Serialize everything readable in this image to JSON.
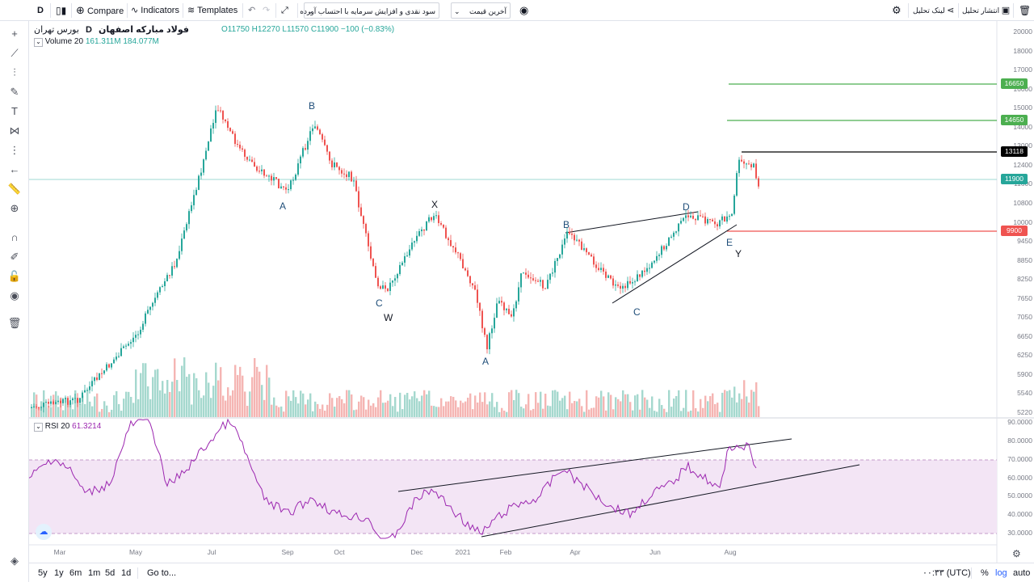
{
  "toolbar": {
    "interval": "D",
    "compare": "Compare",
    "indicators": "Indicators",
    "templates": "Templates",
    "dropdown_1": "سود نقدی و افزایش سرمایه با احتساب آورده",
    "dropdown_2": "آخرین قیمت",
    "link_analysis": "لینک تحلیل",
    "publish_analysis": "انتشار تحلیل"
  },
  "legend": {
    "symbol": "فولاد مبارکه اصفهان",
    "interval": "D",
    "exchange": "بورس تهران",
    "ohlc": "O11750 H12270 L11570 C11900 −100 (−0.83%)",
    "volume_label": "Volume 20",
    "volume_v1": "161.311M",
    "volume_v2": "184.077M",
    "rsi_label": "RSI 20",
    "rsi_value": "61.3214"
  },
  "price_axis": {
    "ticks": [
      "20000",
      "18000",
      "17000",
      "16000",
      "15000",
      "14000",
      "13000",
      "12400",
      "11600",
      "10800",
      "10000",
      "9450",
      "8850",
      "8250",
      "7650",
      "7050",
      "6650",
      "6250",
      "5900",
      "5540",
      "5220"
    ],
    "labels": [
      {
        "value": "16650",
        "color": "#4caf50"
      },
      {
        "value": "14650",
        "color": "#4caf50"
      },
      {
        "value": "13118",
        "color": "#000000"
      },
      {
        "value": "11900",
        "color": "#26a69a"
      },
      {
        "value": "9900",
        "color": "#ef5350"
      }
    ]
  },
  "rsi_axis": {
    "ticks": [
      "90.0000",
      "80.0000",
      "70.0000",
      "60.0000",
      "50.0000",
      "40.0000",
      "30.0000"
    ]
  },
  "time_axis": [
    "Mar",
    "May",
    "Jul",
    "Sep",
    "Oct",
    "Dec",
    "2021",
    "Feb",
    "Apr",
    "Jun",
    "Aug"
  ],
  "wave_labels": [
    "B",
    "A",
    "C",
    "W",
    "X",
    "A",
    "B",
    "C",
    "D",
    "E",
    "Y"
  ],
  "bottom": {
    "ranges": [
      "5y",
      "1y",
      "6m",
      "1m",
      "5d",
      "1d"
    ],
    "goto": "Go to...",
    "clock": "۰۰:۳۳ (UTC)",
    "percent": "%",
    "log": "log",
    "auto": "auto"
  },
  "colors": {
    "up": "#26a69a",
    "down": "#ef5350",
    "rsi": "#9c27b0",
    "rsi_band": "#f3e5f5",
    "current_price_line": "#9fd8d3"
  },
  "chart_data": {
    "type": "candlestick",
    "price_close_path": [
      {
        "x": "Feb",
        "y": 5300
      },
      {
        "x": "Mar",
        "y": 5350
      },
      {
        "x": "May",
        "y": 6400
      },
      {
        "x": "Jun",
        "y": 11200
      },
      {
        "x": "Jul",
        "y": 15800
      },
      {
        "x": "Aug",
        "y": 12400
      },
      {
        "x": "Sep",
        "y": 14500
      },
      {
        "x": "Oct",
        "y": 11600
      },
      {
        "x": "Nov",
        "y": 8000
      },
      {
        "x": "Dec",
        "y": 10600
      },
      {
        "x": "2021",
        "y": 7800
      },
      {
        "x": "Jan",
        "y": 6600
      },
      {
        "x": "Feb",
        "y": 8700
      },
      {
        "x": "Mar",
        "y": 9800
      },
      {
        "x": "Apr",
        "y": 8300
      },
      {
        "x": "May",
        "y": 9000
      },
      {
        "x": "Jun",
        "y": 10200
      },
      {
        "x": "Jul",
        "y": 10600
      },
      {
        "x": "Aug",
        "y": 12300
      },
      {
        "x": "Aug",
        "y": 11900
      }
    ],
    "rsi_range": [
      30,
      90
    ],
    "rsi_band": [
      30,
      70
    ]
  }
}
